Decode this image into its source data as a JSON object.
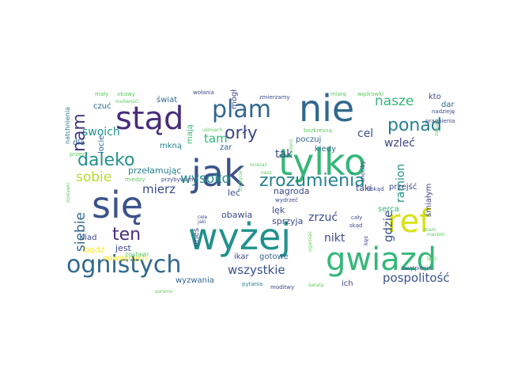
{
  "words": [
    {
      "text": "jak",
      "color": "#3b528b"
    },
    {
      "text": "tylko",
      "color": "#35b779"
    },
    {
      "text": "wyżej",
      "color": "#21918c"
    },
    {
      "text": "się",
      "color": "#3b528b"
    },
    {
      "text": "nie",
      "color": "#31688e"
    },
    {
      "text": "stąd",
      "color": "#472d7b"
    },
    {
      "text": "ognistych",
      "color": "#31688e"
    },
    {
      "text": "ref",
      "color": "#d8e219"
    },
    {
      "text": "gwiazd",
      "color": "#35b779"
    },
    {
      "text": "zrozumienia",
      "color": "#26828e"
    },
    {
      "text": "plam",
      "color": "#31688e"
    },
    {
      "text": "ponad",
      "color": "#26828e"
    },
    {
      "text": "daleko",
      "color": "#21918c"
    },
    {
      "text": "nam",
      "color": "#443983"
    },
    {
      "text": "orły",
      "color": "#3e4989"
    },
    {
      "text": "ten",
      "color": "#472d7b"
    },
    {
      "text": "nasze",
      "color": "#35b779"
    },
    {
      "text": "wysoko",
      "color": "#21918c"
    },
    {
      "text": "mierz",
      "color": "#3e4989"
    },
    {
      "text": "sobie",
      "color": "#b5de2b"
    },
    {
      "text": "siebie",
      "color": "#31688e"
    },
    {
      "text": "wszystkie",
      "color": "#3b528b"
    },
    {
      "text": "pospolitość",
      "color": "#3b528b"
    },
    {
      "text": "gdzie",
      "color": "#3b528b"
    },
    {
      "text": "tam",
      "color": "#35b779"
    },
    {
      "text": "swoich",
      "color": "#21918c"
    },
    {
      "text": "tak",
      "color": "#3b528b"
    },
    {
      "text": "cel",
      "color": "#3b528b"
    },
    {
      "text": "wzleć",
      "color": "#414487"
    },
    {
      "text": "nikt",
      "color": "#3e4989"
    },
    {
      "text": "ramion",
      "color": "#21918c"
    },
    {
      "text": "zrzuć",
      "color": "#3e4989"
    },
    {
      "text": "przełamując",
      "color": "#26828e"
    },
    {
      "text": "nagroda",
      "color": "#3e4989"
    },
    {
      "text": "leć",
      "color": "#3e4989"
    },
    {
      "text": "taki",
      "color": "#3e4989"
    },
    {
      "text": "lęk",
      "color": "#3e4989"
    },
    {
      "text": "sprzyja",
      "color": "#3e4989"
    },
    {
      "text": "obawia",
      "color": "#3e4989"
    },
    {
      "text": "jest",
      "color": "#3e4989"
    },
    {
      "text": "bądź",
      "color": "#fde725"
    },
    {
      "text": "kiedy",
      "color": "#31688e"
    },
    {
      "text": "poczuj",
      "color": "#31688e"
    },
    {
      "text": "śmiałym",
      "color": "#3e4989"
    },
    {
      "text": "przejść",
      "color": "#3e4989"
    },
    {
      "text": "serca",
      "color": "#35b779"
    },
    {
      "text": "gotowe",
      "color": "#31688e"
    },
    {
      "text": "ikar",
      "color": "#3e4989"
    },
    {
      "text": "odważnych",
      "color": "#fde725"
    },
    {
      "text": "wyzwania",
      "color": "#31688e"
    },
    {
      "text": "ich",
      "color": "#3e4989"
    },
    {
      "text": "czuć",
      "color": "#31688e"
    },
    {
      "text": "dla",
      "color": "#31688e"
    },
    {
      "text": "mkną",
      "color": "#26828e"
    },
    {
      "text": "mają",
      "color": "#35b779"
    },
    {
      "text": "zar",
      "color": "#31688e"
    },
    {
      "text": "świat",
      "color": "#31688e"
    },
    {
      "text": "locie",
      "color": "#31688e"
    },
    {
      "text": "dar",
      "color": "#31688e"
    },
    {
      "text": "kto",
      "color": "#3e4989"
    },
    {
      "text": "uneś",
      "color": "#3e4989"
    },
    {
      "text": "ślad",
      "color": "#3e4989"
    },
    {
      "text": "mógł",
      "color": "#3e4989"
    },
    {
      "text": "natchnienia",
      "color": "#2a788e"
    },
    {
      "text": "mały",
      "color": "#5ec962"
    },
    {
      "text": "obawy",
      "color": "#5ec962"
    },
    {
      "text": "moliwości",
      "color": "#5ec962"
    },
    {
      "text": "wołania",
      "color": "#3e4989"
    },
    {
      "text": "zmierzamy",
      "color": "#3e4989"
    },
    {
      "text": "wędrowki",
      "color": "#5ec962"
    },
    {
      "text": "miarę",
      "color": "#5ec962"
    },
    {
      "text": "nadzieję",
      "color": "#3e4989"
    },
    {
      "text": "pragnienia",
      "color": "#3e4989"
    },
    {
      "text": "bezkresną",
      "color": "#5ec962"
    },
    {
      "text": "zawsze",
      "color": "#5ec962"
    },
    {
      "text": "uśmiech",
      "color": "#5ec962"
    },
    {
      "text": "zmierz",
      "color": "#5ec962"
    },
    {
      "text": "przez",
      "color": "#5ec962"
    },
    {
      "text": "przybywamy",
      "color": "#3e4989"
    },
    {
      "text": "miedzy",
      "color": "#5ec962"
    },
    {
      "text": "zostawic",
      "color": "#5ec962"
    },
    {
      "text": "zostawi",
      "color": "#5ec962"
    },
    {
      "text": "wydrzeć",
      "color": "#3e4989"
    },
    {
      "text": "dokąd",
      "color": "#3e4989"
    },
    {
      "text": "skąd",
      "color": "#3e4989"
    },
    {
      "text": "cały",
      "color": "#3e4989"
    },
    {
      "text": "zwątpienia",
      "color": "#3e4989"
    },
    {
      "text": "lęki",
      "color": "#5ec962"
    },
    {
      "text": "chociby",
      "color": "#3e4989"
    },
    {
      "text": "pytania",
      "color": "#26828e"
    },
    {
      "text": "moditwy",
      "color": "#3e4989"
    },
    {
      "text": "świata",
      "color": "#5ec962"
    },
    {
      "text": "spramy",
      "color": "#5ec962"
    },
    {
      "text": "cele",
      "color": "#3e4989"
    },
    {
      "text": "jaki",
      "color": "#3e4989"
    },
    {
      "text": "kęs",
      "color": "#3e4989"
    },
    {
      "text": "marzeń",
      "color": "#5ec962"
    },
    {
      "text": "mam",
      "color": "#5ec962"
    },
    {
      "text": "ogarniać",
      "color": "#5ec962"
    },
    {
      "text": "zdobycie",
      "color": "#5ec962"
    },
    {
      "text": "ocierać",
      "color": "#5ec962"
    },
    {
      "text": "nasz",
      "color": "#5ec962"
    }
  ]
}
